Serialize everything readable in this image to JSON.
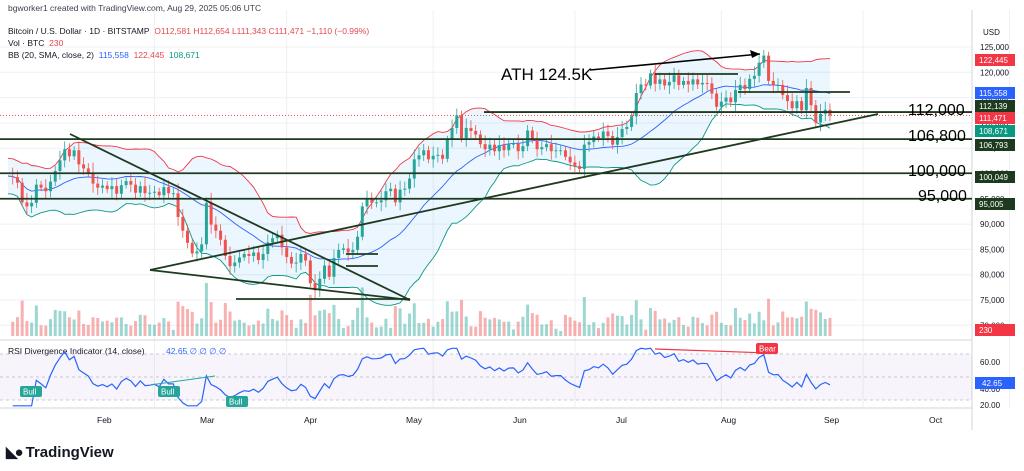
{
  "header": {
    "created": "bgworker1 created with TradingView.com, Aug 29, 2025 05:06 UTC",
    "symbol": "Bitcoin / U.S. Dollar · 1D · BITSTAMP",
    "ohlc": "O112,581  H112,654  L111,343  C111,471  −1,110 (−0.99%)",
    "vol_label": "Vol · BTC",
    "vol_value": "230",
    "bb_label": "BB (20, SMA, close, 2)",
    "bb_values": [
      "115,558",
      "122,445",
      "108,671"
    ]
  },
  "price_axis": {
    "unit": "USD",
    "ticks": [
      "125,000",
      "120,000",
      "115,000",
      "110,000",
      "105,000",
      "100,000",
      "95,000",
      "90,000",
      "85,000",
      "80,000",
      "75,000",
      "70,000"
    ]
  },
  "price_badges": [
    {
      "text": "122,445",
      "color": "#f23645"
    },
    {
      "text": "115,558",
      "color": "#2962ff"
    },
    {
      "text": "112,139",
      "color": "#1e3a1e"
    },
    {
      "text": "111,471",
      "color": "#f23645"
    },
    {
      "text": "108,671",
      "color": "#089981"
    },
    {
      "text": "106,793",
      "color": "#1e3a1e"
    },
    {
      "text": "100,049",
      "color": "#1e3a1e"
    },
    {
      "text": "95,005",
      "color": "#1e3a1e"
    },
    {
      "text": "230",
      "color": "#f23645"
    }
  ],
  "annotations": {
    "ath": "ATH 124.5K",
    "levels": [
      "112,000",
      "106,800",
      "100,000",
      "95,000"
    ]
  },
  "time_axis": [
    "Feb",
    "Mar",
    "Apr",
    "May",
    "Jun",
    "Jul",
    "Aug",
    "Sep",
    "Oct"
  ],
  "rsi": {
    "label": "RSI Divergence Indicator (14, close)",
    "values_text": "42.65  ∅  ∅  ∅  ∅",
    "ticks": [
      "60.00",
      "40.00",
      "20.00"
    ],
    "current": "42.65",
    "tags": [
      "Bull",
      "Bull",
      "Bull",
      "Bear"
    ]
  },
  "brand": "TradingView",
  "colors": {
    "up": "#26a69a",
    "down": "#ef5350",
    "bb_upper": "#f23645",
    "bb_basis": "#2962ff",
    "bb_lower": "#089981",
    "rsi": "#2962ff",
    "lines": "#1e3a1e"
  },
  "chart_data": {
    "type": "candlestick",
    "title": "Bitcoin / U.S. Dollar · 1D · BITSTAMP",
    "x_labels": [
      "Feb",
      "Mar",
      "Apr",
      "May",
      "Jun",
      "Jul",
      "Aug",
      "Sep",
      "Oct"
    ],
    "ylim": [
      70000,
      128000
    ],
    "close_path": [
      [
        0,
        99500
      ],
      [
        1,
        99300
      ],
      [
        2,
        98200
      ],
      [
        3,
        94300
      ],
      [
        4,
        93500
      ],
      [
        5,
        94200
      ],
      [
        6,
        97800
      ],
      [
        7,
        97200
      ],
      [
        8,
        96500
      ],
      [
        9,
        98400
      ],
      [
        10,
        100500
      ],
      [
        11,
        102600
      ],
      [
        12,
        104800
      ],
      [
        13,
        103400
      ],
      [
        14,
        104600
      ],
      [
        15,
        101800
      ],
      [
        16,
        101000
      ],
      [
        17,
        100200
      ],
      [
        18,
        98000
      ],
      [
        19,
        97200
      ],
      [
        20,
        97600
      ],
      [
        21,
        96900
      ],
      [
        22,
        97500
      ],
      [
        23,
        96000
      ],
      [
        24,
        97700
      ],
      [
        25,
        98500
      ],
      [
        26,
        97800
      ],
      [
        27,
        96200
      ],
      [
        28,
        97500
      ],
      [
        29,
        96100
      ],
      [
        30,
        96200
      ],
      [
        31,
        96400
      ],
      [
        32,
        95700
      ],
      [
        33,
        97300
      ],
      [
        34,
        96100
      ],
      [
        35,
        96100
      ],
      [
        36,
        91400
      ],
      [
        37,
        88700
      ],
      [
        38,
        86300
      ],
      [
        39,
        84200
      ],
      [
        40,
        84600
      ],
      [
        41,
        86000
      ],
      [
        42,
        94200
      ],
      [
        43,
        89900
      ],
      [
        44,
        88700
      ],
      [
        45,
        86900
      ],
      [
        46,
        83700
      ],
      [
        47,
        81700
      ],
      [
        48,
        82400
      ],
      [
        49,
        83400
      ],
      [
        50,
        84100
      ],
      [
        51,
        83700
      ],
      [
        52,
        84400
      ],
      [
        53,
        82900
      ],
      [
        54,
        84100
      ],
      [
        55,
        86400
      ],
      [
        56,
        87200
      ],
      [
        57,
        87900
      ],
      [
        58,
        85400
      ],
      [
        59,
        83500
      ],
      [
        60,
        82200
      ],
      [
        61,
        82400
      ],
      [
        62,
        84100
      ],
      [
        63,
        82800
      ],
      [
        64,
        78300
      ],
      [
        65,
        76900
      ],
      [
        66,
        79200
      ],
      [
        67,
        81800
      ],
      [
        68,
        79600
      ],
      [
        69,
        83300
      ],
      [
        70,
        84900
      ],
      [
        71,
        85200
      ],
      [
        72,
        84400
      ],
      [
        73,
        84900
      ],
      [
        74,
        87500
      ],
      [
        75,
        93500
      ],
      [
        76,
        94900
      ],
      [
        77,
        94200
      ],
      [
        78,
        94300
      ],
      [
        79,
        94700
      ],
      [
        80,
        96500
      ],
      [
        81,
        97000
      ],
      [
        82,
        94300
      ],
      [
        83,
        96800
      ],
      [
        84,
        97000
      ],
      [
        85,
        99000
      ],
      [
        86,
        102800
      ],
      [
        87,
        103600
      ],
      [
        88,
        104600
      ],
      [
        89,
        102800
      ],
      [
        90,
        103500
      ],
      [
        91,
        103700
      ],
      [
        92,
        102900
      ],
      [
        93,
        106700
      ],
      [
        94,
        109000
      ],
      [
        95,
        111500
      ],
      [
        96,
        107000
      ],
      [
        97,
        109000
      ],
      [
        98,
        108400
      ],
      [
        99,
        107700
      ],
      [
        100,
        105800
      ],
      [
        101,
        104800
      ],
      [
        102,
        105700
      ],
      [
        103,
        104400
      ],
      [
        104,
        105600
      ],
      [
        105,
        104600
      ],
      [
        106,
        105800
      ],
      [
        107,
        105900
      ],
      [
        108,
        104400
      ],
      [
        109,
        105400
      ],
      [
        110,
        108500
      ],
      [
        111,
        106600
      ],
      [
        112,
        104800
      ],
      [
        113,
        105200
      ],
      [
        114,
        105800
      ],
      [
        115,
        104400
      ],
      [
        116,
        104600
      ],
      [
        117,
        104600
      ],
      [
        118,
        103300
      ],
      [
        119,
        102200
      ],
      [
        120,
        101500
      ],
      [
        121,
        100900
      ],
      [
        122,
        105700
      ],
      [
        123,
        106200
      ],
      [
        124,
        107300
      ],
      [
        125,
        107000
      ],
      [
        126,
        108300
      ],
      [
        127,
        107400
      ],
      [
        128,
        105700
      ],
      [
        129,
        107200
      ],
      [
        130,
        108800
      ],
      [
        131,
        109200
      ],
      [
        132,
        111300
      ],
      [
        133,
        115900
      ],
      [
        134,
        117600
      ],
      [
        135,
        117400
      ],
      [
        136,
        119800
      ],
      [
        137,
        117700
      ],
      [
        138,
        118600
      ],
      [
        139,
        117400
      ],
      [
        140,
        118100
      ],
      [
        141,
        119400
      ],
      [
        142,
        117500
      ],
      [
        143,
        118300
      ],
      [
        144,
        117600
      ],
      [
        145,
        118600
      ],
      [
        146,
        117600
      ],
      [
        147,
        117900
      ],
      [
        148,
        117800
      ],
      [
        149,
        115800
      ],
      [
        150,
        113200
      ],
      [
        151,
        114200
      ],
      [
        152,
        115000
      ],
      [
        153,
        114100
      ],
      [
        154,
        116500
      ],
      [
        155,
        117500
      ],
      [
        156,
        116700
      ],
      [
        157,
        118700
      ],
      [
        158,
        119300
      ],
      [
        159,
        121900
      ],
      [
        160,
        123300
      ],
      [
        161,
        118300
      ],
      [
        162,
        117400
      ],
      [
        163,
        117500
      ],
      [
        164,
        115500
      ],
      [
        165,
        114300
      ],
      [
        166,
        112900
      ],
      [
        167,
        114300
      ],
      [
        168,
        112500
      ],
      [
        169,
        116900
      ],
      [
        170,
        113500
      ],
      [
        171,
        110100
      ],
      [
        172,
        111800
      ],
      [
        173,
        112600
      ],
      [
        174,
        111471
      ]
    ],
    "horizontal_levels": [
      112139,
      106793,
      100049,
      95005
    ],
    "ath": 124500,
    "bollinger": {
      "period": 20,
      "mult": 2,
      "basis": 115558,
      "upper": 122445,
      "lower": 108671
    },
    "volume_last": 230,
    "rsi": {
      "period": 14,
      "last": 42.65,
      "ylim": [
        20,
        80
      ],
      "ticks": [
        60,
        40,
        20
      ]
    }
  }
}
